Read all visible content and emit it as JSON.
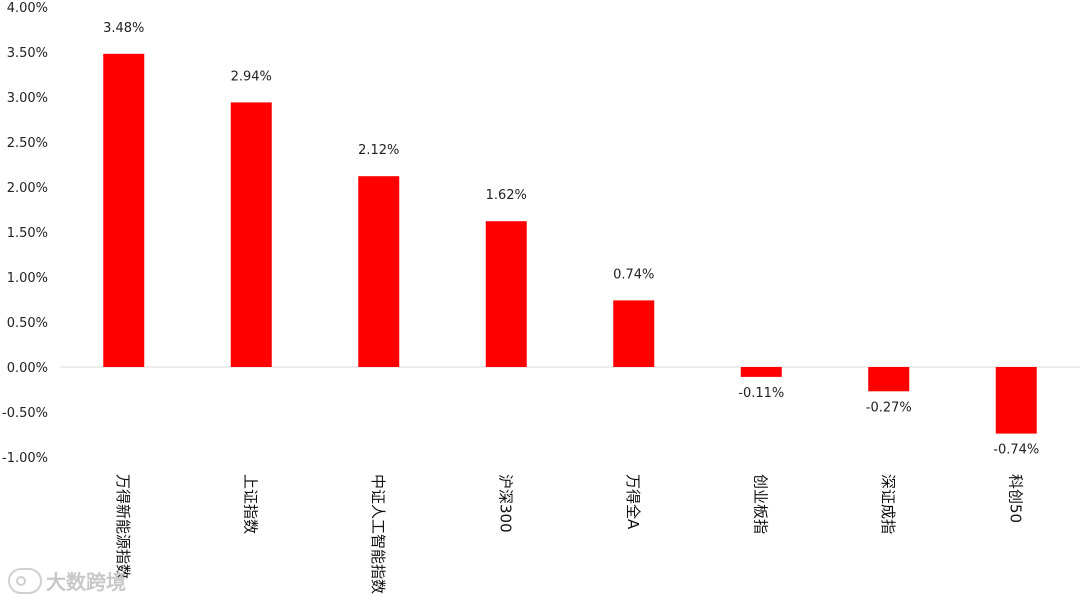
{
  "chart_data": {
    "type": "bar",
    "categories": [
      "万得新能源指数",
      "上证指数",
      "中证人工智能指数",
      "沪深300",
      "万得全A",
      "创业板指",
      "深证成指",
      "科创50"
    ],
    "values": [
      3.48,
      2.94,
      2.12,
      1.62,
      0.74,
      -0.11,
      -0.27,
      -0.74
    ],
    "value_labels": [
      "3.48%",
      "2.94%",
      "2.12%",
      "1.62%",
      "0.74%",
      "-0.11%",
      "-0.27%",
      "-0.74%"
    ],
    "ylim": [
      -1.0,
      4.0
    ],
    "yticks": [
      4.0,
      3.5,
      3.0,
      2.5,
      2.0,
      1.5,
      1.0,
      0.5,
      0.0,
      -0.5,
      -1.0
    ],
    "ytick_labels": [
      "4.00%",
      "3.50%",
      "3.00%",
      "2.50%",
      "2.00%",
      "1.50%",
      "1.00%",
      "0.50%",
      "0.00%",
      "-0.50%",
      "-1.00%"
    ],
    "bar_color": "#ff0000",
    "grid": false,
    "legend": "none"
  },
  "watermark": {
    "text": "大数跨境",
    "icon": "brand-logo-icon"
  }
}
